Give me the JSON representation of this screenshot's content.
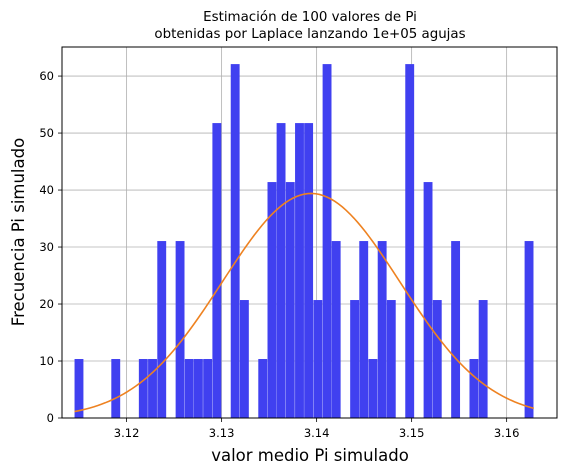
{
  "chart_data": {
    "type": "bar",
    "title": "Estimación de 100 valores de Pi\nobtenidas por Laplace lanzando 1e+05 agujas",
    "xlabel": "valor medio Pi simulado",
    "ylabel": "Frecuencia Pi simulado",
    "xlim": [
      3.1132,
      3.1653
    ],
    "ylim": [
      0,
      65.1
    ],
    "xticks": [
      3.12,
      3.13,
      3.14,
      3.15,
      3.16
    ],
    "xtick_labels": [
      "3.12",
      "3.13",
      "3.14",
      "3.15",
      "3.16"
    ],
    "yticks": [
      0,
      10,
      20,
      30,
      40,
      50,
      60
    ],
    "ytick_labels": [
      "0",
      "10",
      "20",
      "30",
      "40",
      "50",
      "60"
    ],
    "grid": true,
    "bar_color": "#4040f0",
    "curve_color": "#ee8221",
    "bin_width": 0.000966,
    "bins": [
      {
        "x": 3.11452,
        "h": 10.35
      },
      {
        "x": 3.11839,
        "h": 10.35
      },
      {
        "x": 3.12129,
        "h": 10.35
      },
      {
        "x": 3.12226,
        "h": 10.35
      },
      {
        "x": 3.12323,
        "h": 31.05
      },
      {
        "x": 3.12516,
        "h": 31.05
      },
      {
        "x": 3.12613,
        "h": 10.35
      },
      {
        "x": 3.12709,
        "h": 10.35
      },
      {
        "x": 3.12806,
        "h": 10.35
      },
      {
        "x": 3.12903,
        "h": 51.75
      },
      {
        "x": 3.13096,
        "h": 62.1
      },
      {
        "x": 3.13193,
        "h": 20.7
      },
      {
        "x": 3.13386,
        "h": 10.35
      },
      {
        "x": 3.13483,
        "h": 41.4
      },
      {
        "x": 3.13579,
        "h": 51.75
      },
      {
        "x": 3.13676,
        "h": 41.4
      },
      {
        "x": 3.13773,
        "h": 51.75
      },
      {
        "x": 3.13869,
        "h": 51.75
      },
      {
        "x": 3.13966,
        "h": 20.7
      },
      {
        "x": 3.14063,
        "h": 62.1
      },
      {
        "x": 3.14159,
        "h": 31.05
      },
      {
        "x": 3.14353,
        "h": 20.7
      },
      {
        "x": 3.14449,
        "h": 31.05
      },
      {
        "x": 3.14546,
        "h": 10.35
      },
      {
        "x": 3.14643,
        "h": 31.05
      },
      {
        "x": 3.14739,
        "h": 20.7
      },
      {
        "x": 3.14933,
        "h": 62.1
      },
      {
        "x": 3.15126,
        "h": 41.4
      },
      {
        "x": 3.15223,
        "h": 20.7
      },
      {
        "x": 3.15416,
        "h": 31.05
      },
      {
        "x": 3.15609,
        "h": 10.35
      },
      {
        "x": 3.15706,
        "h": 20.7
      },
      {
        "x": 3.16189,
        "h": 31.05
      }
    ],
    "curve": {
      "mean": 3.13942,
      "sd": 0.00934,
      "peak": 39.4,
      "x_range": [
        3.11452,
        3.16286
      ]
    }
  }
}
